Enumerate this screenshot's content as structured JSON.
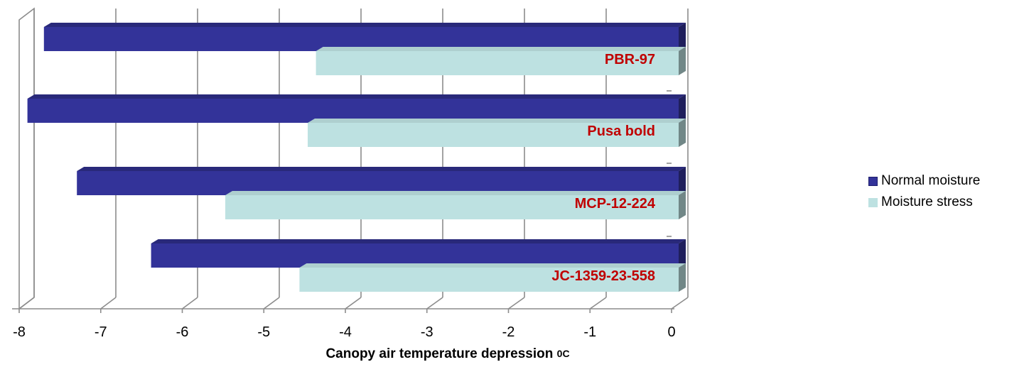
{
  "chart_data": {
    "type": "bar",
    "orientation": "horizontal",
    "three_d": true,
    "categories": [
      "PBR-97",
      "Pusa bold",
      "MCP-12-224",
      "JC-1359-23-558"
    ],
    "series": [
      {
        "name": "Normal moisture",
        "values": [
          -7.7,
          -7.9,
          -7.3,
          -6.4
        ],
        "color": "#333399"
      },
      {
        "name": "Moisture stress",
        "values": [
          -4.4,
          -4.5,
          -5.5,
          -4.6
        ],
        "color": "#bde1e1"
      }
    ],
    "xlabel": "Canopy  air temperature depression ",
    "xlabel_unit": "0C",
    "xlim": [
      -8,
      0
    ],
    "xticks": [
      "-8",
      "-7",
      "-6",
      "-5",
      "-4",
      "-3",
      "-2",
      "-1",
      "0"
    ],
    "grid": true,
    "legend_position": "right",
    "category_label_color": "#c00000"
  }
}
